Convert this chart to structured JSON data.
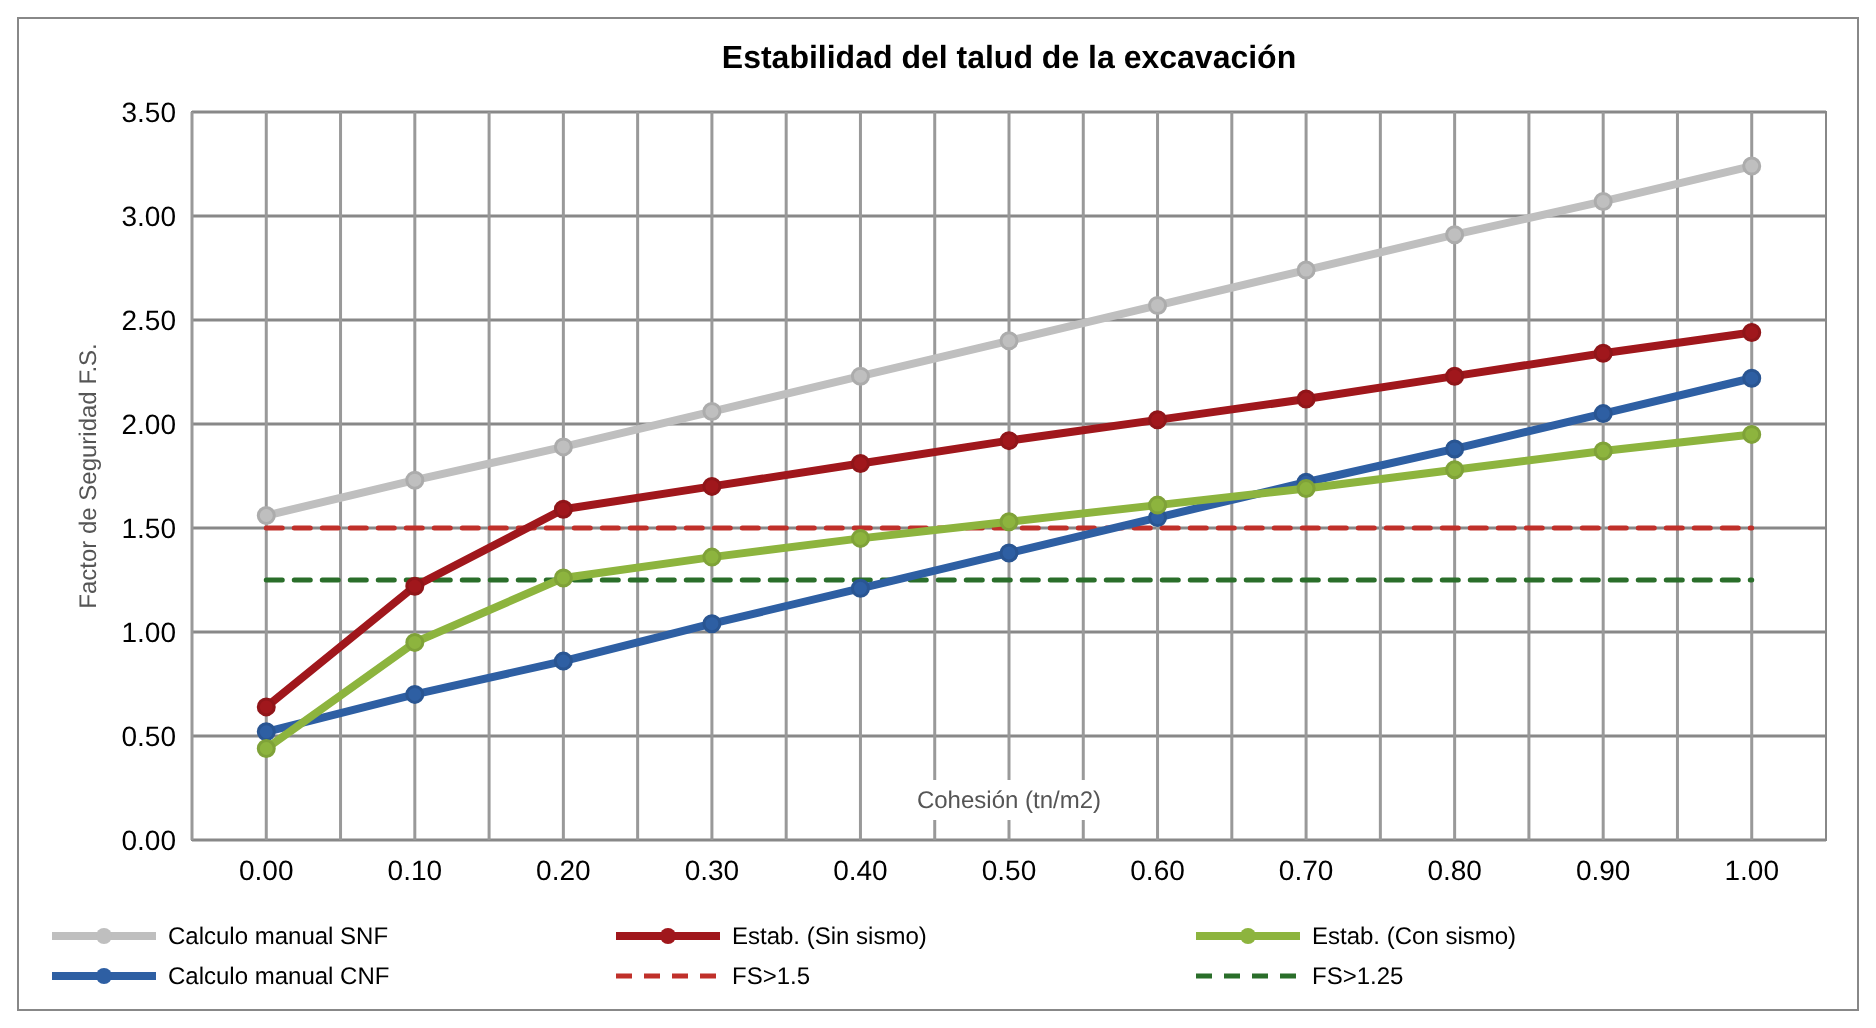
{
  "chart_data": {
    "type": "line",
    "title": "Estabilidad del talud de la excavación",
    "xlabel": "Cohesión (tn/m2)",
    "ylabel": "Factor de Seguridad F.S.",
    "categories": [
      "0.00",
      "0.10",
      "0.20",
      "0.30",
      "0.40",
      "0.50",
      "0.60",
      "0.70",
      "0.80",
      "0.90",
      "1.00"
    ],
    "ylim": [
      0,
      3.5
    ],
    "yticks": [
      {
        "value": 0,
        "label": "0.00"
      },
      {
        "value": 0.5,
        "label": "0.50"
      },
      {
        "value": 1,
        "label": "1.00"
      },
      {
        "value": 1.5,
        "label": "1.50"
      },
      {
        "value": 2,
        "label": "2.00"
      },
      {
        "value": 2.5,
        "label": "2.50"
      },
      {
        "value": 3,
        "label": "3.00"
      },
      {
        "value": 3.5,
        "label": "3.50"
      }
    ],
    "grid": true,
    "legend": "bottom",
    "marker": "circle",
    "line_style": "solid",
    "series": [
      {
        "name": "Calculo manual SNF",
        "color": "#bfbfbf",
        "values": [
          1.56,
          1.73,
          1.89,
          2.06,
          2.23,
          2.4,
          2.57,
          2.74,
          2.91,
          3.07,
          3.24
        ]
      },
      {
        "name": "Estab. (Sin sismo)",
        "color": "#a0171c",
        "values": [
          0.64,
          1.22,
          1.59,
          1.7,
          1.81,
          1.92,
          2.02,
          2.12,
          2.23,
          2.34,
          2.44
        ]
      },
      {
        "name": "Estab. (Con sismo)",
        "color": "#8db43e",
        "values": [
          0.44,
          0.95,
          1.26,
          1.36,
          1.45,
          1.53,
          1.61,
          1.69,
          1.78,
          1.87,
          1.95
        ]
      },
      {
        "name": "Calculo manual CNF",
        "color": "#2e5fa3",
        "values": [
          0.52,
          0.7,
          0.86,
          1.04,
          1.21,
          1.38,
          1.55,
          1.72,
          1.88,
          2.05,
          2.22
        ]
      },
      {
        "name": "FS>1.5",
        "color": "#c0302a",
        "line_style": "dashed",
        "marker": "none",
        "values": [
          1.5,
          1.5,
          1.5,
          1.5,
          1.5,
          1.5,
          1.5,
          1.5,
          1.5,
          1.5,
          1.5
        ]
      },
      {
        "name": "FS>1.25",
        "color": "#2a6e2a",
        "line_style": "dashed",
        "marker": "none",
        "values": [
          1.25,
          1.25,
          1.25,
          1.25,
          1.25,
          1.25,
          1.25,
          1.25,
          1.25,
          1.25,
          1.25
        ]
      }
    ]
  }
}
